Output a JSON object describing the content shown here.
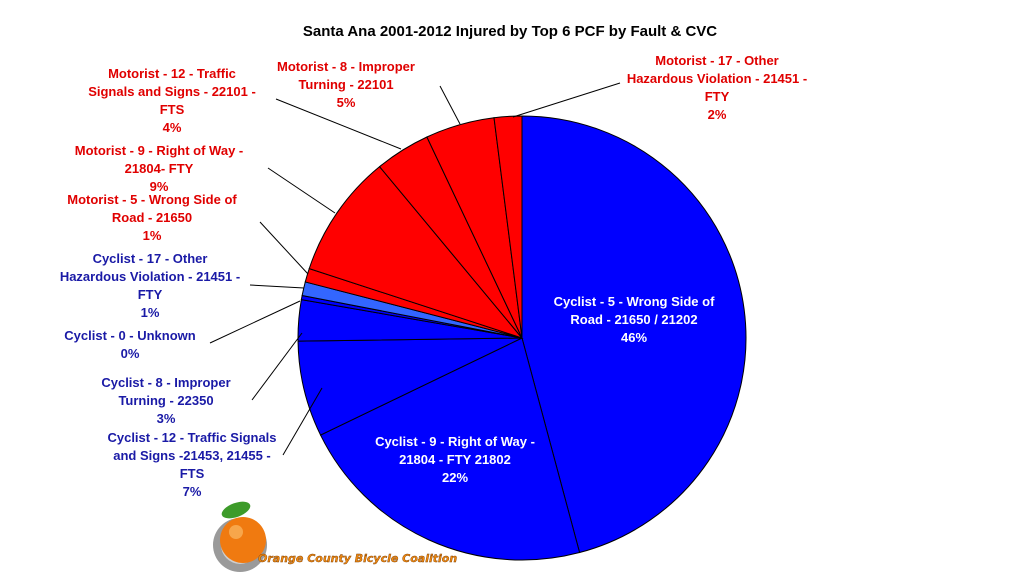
{
  "chart_data": {
    "type": "pie",
    "title": "Santa Ana 2001-2012 Injured  by Top 6 PCF by Fault & CVC",
    "colors": {
      "motorist": "#ff0000",
      "cyclist": "#0000ff",
      "cyclist_light": "#3366ff",
      "motorist_label": "#e00000",
      "cyclist_label": "#1a1aa6"
    },
    "slices": [
      {
        "group": "cyclist",
        "label_lines": [
          "Cyclist - 5 - Wrong Side of",
          "Road - 21650 / 21202"
        ],
        "value": 46,
        "pct": "46%"
      },
      {
        "group": "cyclist",
        "label_lines": [
          "Cyclist - 9 - Right of Way -",
          "21804 - FTY 21802"
        ],
        "value": 22,
        "pct": "22%"
      },
      {
        "group": "cyclist",
        "label_lines": [
          "Cyclist - 12 - Traffic Signals",
          "and Signs -21453, 21455 -",
          "FTS"
        ],
        "value": 7,
        "pct": "7%"
      },
      {
        "group": "cyclist",
        "label_lines": [
          "Cyclist - 8 - Improper",
          "Turning - 22350"
        ],
        "value": 3,
        "pct": "3%"
      },
      {
        "group": "cyclist",
        "label_lines": [
          "Cyclist - 0 - Unknown"
        ],
        "value": 0.3,
        "pct": "0%"
      },
      {
        "group": "cyclist_light",
        "label_lines": [
          "Cyclist - 17 - Other",
          "Hazardous Violation - 21451 -",
          "FTY"
        ],
        "value": 1,
        "pct": "1%"
      },
      {
        "group": "motorist",
        "label_lines": [
          "Motorist - 5 - Wrong Side of",
          "Road - 21650"
        ],
        "value": 1,
        "pct": "1%"
      },
      {
        "group": "motorist",
        "label_lines": [
          "Motorist - 9 - Right of Way -",
          "21804- FTY"
        ],
        "value": 9,
        "pct": "9%"
      },
      {
        "group": "motorist",
        "label_lines": [
          "Motorist - 12 - Traffic",
          "Signals and Signs - 22101 -",
          "FTS"
        ],
        "value": 4,
        "pct": "4%"
      },
      {
        "group": "motorist",
        "label_lines": [
          "Motorist - 8 - Improper",
          "Turning - 22101"
        ],
        "value": 5,
        "pct": "5%"
      },
      {
        "group": "motorist",
        "label_lines": [
          "Motorist - 17 - Other",
          "Hazardous Violation - 21451 -",
          "FTY"
        ],
        "value": 2,
        "pct": "2%"
      }
    ]
  },
  "logo": {
    "text": "Orange County Bicycle Coalition"
  }
}
